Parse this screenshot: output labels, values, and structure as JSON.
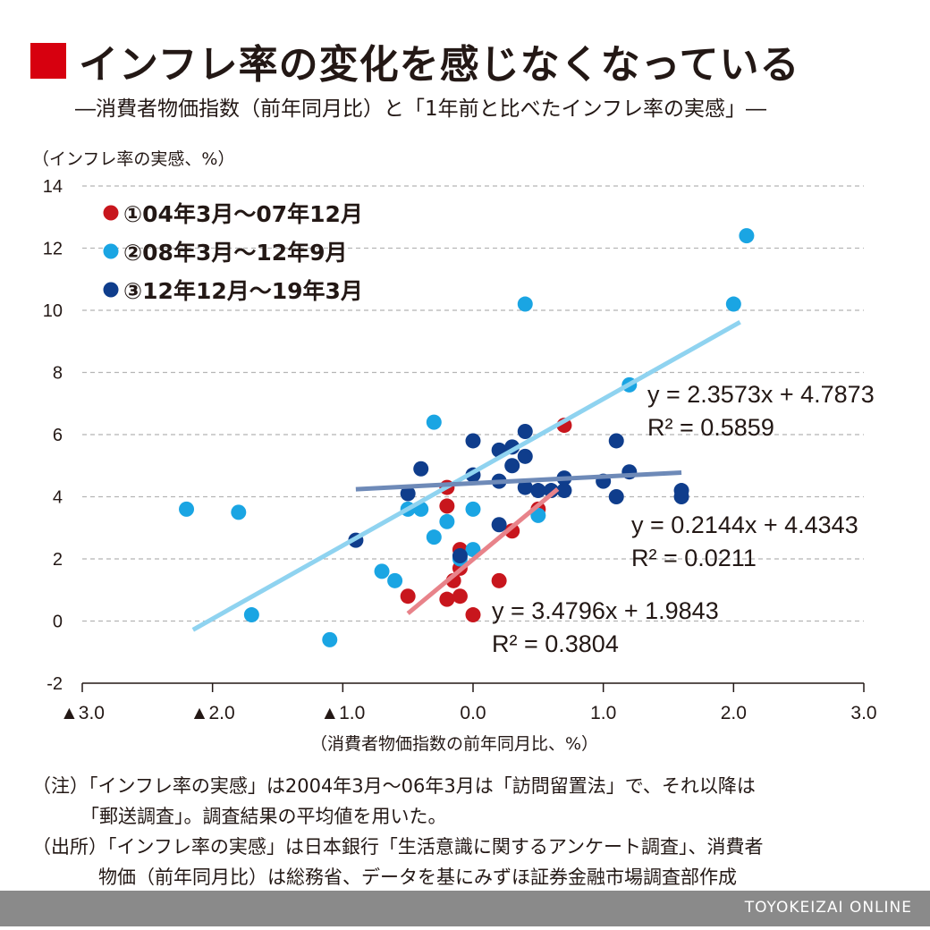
{
  "header": {
    "title": "インフレ率の変化を感じなくなっている",
    "subtitle": "―消費者物価指数（前年同月比）と「1年前と比べたインフレ率の実感」―"
  },
  "notes": {
    "line1": "（注）「インフレ率の実感」は2004年3月～06年3月は「訪問留置法」で、それ以降は",
    "line2": "「郵送調査」。調査結果の平均値を用いた。",
    "line3": "（出所）「インフレ率の実感」は日本銀行「生活意識に関するアンケート調査」、消費者",
    "line4": "物価（前年同月比）は総務省、データを基にみずほ証券金融市場調査部作成"
  },
  "footer": {
    "brand": "TOYOKEIZAI ONLINE"
  },
  "chart_data": {
    "type": "scatter",
    "ylabel": "（インフレ率の実感、%）",
    "xlabel": "（消費者物価指数の前年同月比、%）",
    "xlim": [
      -3.0,
      3.0
    ],
    "ylim": [
      -2,
      14
    ],
    "x_ticks": [
      "▲3.0",
      "▲2.0",
      "▲1.0",
      "0.0",
      "1.0",
      "2.0",
      "3.0"
    ],
    "y_ticks": [
      "-2",
      "0",
      "2",
      "4",
      "6",
      "8",
      "10",
      "12",
      "14"
    ],
    "grid": true,
    "legend_position": "top-left",
    "series": [
      {
        "name": "①04年3月～07年12月",
        "color": "#c8161d",
        "line_color": "#e8838a",
        "points": [
          [
            -0.5,
            0.8
          ],
          [
            -0.2,
            0.7
          ],
          [
            -0.2,
            3.7
          ],
          [
            -0.2,
            4.3
          ],
          [
            -0.15,
            1.3
          ],
          [
            -0.1,
            0.8
          ],
          [
            -0.1,
            1.7
          ],
          [
            -0.1,
            2.3
          ],
          [
            0.0,
            0.2
          ],
          [
            0.2,
            1.3
          ],
          [
            0.3,
            2.9
          ],
          [
            0.5,
            3.6
          ],
          [
            0.7,
            6.3
          ]
        ],
        "trendline": {
          "x": [
            -0.5,
            0.65
          ],
          "equation": "y = 3.4796x + 1.9843",
          "r2": "R² = 0.3804"
        }
      },
      {
        "name": "②08年3月～12年9月",
        "color": "#1aa5e3",
        "line_color": "#8fd3f0",
        "points": [
          [
            -2.2,
            3.6
          ],
          [
            -1.8,
            3.5
          ],
          [
            -1.7,
            0.2
          ],
          [
            -1.1,
            -0.6
          ],
          [
            -0.7,
            1.6
          ],
          [
            -0.6,
            1.3
          ],
          [
            -0.5,
            3.6
          ],
          [
            -0.4,
            3.6
          ],
          [
            -0.3,
            2.7
          ],
          [
            -0.3,
            6.4
          ],
          [
            -0.2,
            3.2
          ],
          [
            -0.1,
            2.0
          ],
          [
            0.0,
            3.6
          ],
          [
            0.0,
            2.3
          ],
          [
            0.4,
            10.2
          ],
          [
            0.5,
            3.4
          ],
          [
            1.2,
            7.6
          ],
          [
            2.0,
            10.2
          ],
          [
            2.1,
            12.4
          ]
        ],
        "trendline": {
          "x": [
            -2.15,
            2.05
          ],
          "equation": "y = 2.3573x + 4.7873",
          "r2": "R² = 0.5859"
        }
      },
      {
        "name": "③12年12月～19年3月",
        "color": "#0f3d8c",
        "line_color": "#6e8ab8",
        "points": [
          [
            -0.9,
            2.6
          ],
          [
            -0.5,
            4.1
          ],
          [
            -0.4,
            4.9
          ],
          [
            -0.1,
            2.1
          ],
          [
            0.0,
            4.7
          ],
          [
            0.0,
            5.8
          ],
          [
            0.2,
            3.1
          ],
          [
            0.2,
            4.5
          ],
          [
            0.2,
            5.5
          ],
          [
            0.3,
            5.0
          ],
          [
            0.3,
            5.6
          ],
          [
            0.4,
            4.3
          ],
          [
            0.4,
            5.3
          ],
          [
            0.4,
            6.1
          ],
          [
            0.5,
            4.2
          ],
          [
            0.6,
            4.2
          ],
          [
            0.7,
            4.2
          ],
          [
            0.7,
            4.6
          ],
          [
            1.0,
            4.5
          ],
          [
            1.1,
            4.0
          ],
          [
            1.1,
            5.8
          ],
          [
            1.2,
            4.8
          ],
          [
            1.6,
            4.0
          ],
          [
            1.6,
            4.2
          ]
        ],
        "trendline": {
          "x": [
            -0.9,
            1.6
          ],
          "equation": "y = 0.2144x + 4.4343",
          "r2": "R² = 0.0211"
        }
      }
    ]
  }
}
